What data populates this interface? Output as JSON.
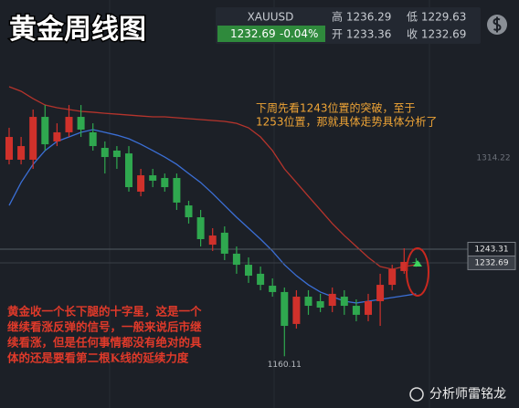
{
  "chart_data": {
    "type": "candlestick",
    "title": "黄金周线图",
    "quote": {
      "symbol": "XAUUSD",
      "last": "1232.69",
      "change": "-0.04%",
      "high": "高 1236.29",
      "low": "低 1229.63",
      "open": "开 1233.36",
      "close": "收 1232.69"
    },
    "annotations": [
      "下周先看1243位置的突破，至于",
      "1253位置，那就具体走势具体分析了"
    ],
    "notes": [
      "黄金收一个长下腿的十字星，这是一个",
      "继续看涨反弹的信号，一般来说后市继",
      "续看涨，但是任何事情都没有绝对的具",
      "体的还是要看第二根K线的延续力度"
    ],
    "watermark": "分析师雷铭龙",
    "up_color": "#d0312b",
    "down_color": "#2fa84f",
    "open": [
      1312.8,
      1312.8,
      1312.8,
      1346.1,
      1327.0,
      1334.1,
      1346.1,
      1334.1,
      1322.0,
      1319.9,
      1317.7,
      1288.0,
      1300.7,
      1298.6,
      1298.6,
      1277.3,
      1268.1,
      1246.8,
      1256.1,
      1239.8,
      1231.2,
      1224.2,
      1214.9,
      1210.0,
      1185.2,
      1206.4,
      1202.9,
      1199.3,
      1206.4,
      1199.3,
      1192.3,
      1202.9,
      1215.6,
      1226.3,
      1233.36
    ],
    "high": [
      1337.6,
      1330.5,
      1351.8,
      1355.3,
      1341.1,
      1355.3,
      1355.3,
      1341.1,
      1327.0,
      1323.4,
      1323.4,
      1305.7,
      1305.7,
      1302.1,
      1302.1,
      1280.9,
      1273.8,
      1259.6,
      1261.0,
      1245.4,
      1236.9,
      1229.8,
      1220.6,
      1213.5,
      1211.4,
      1211.4,
      1208.6,
      1213.5,
      1211.4,
      1204.3,
      1208.6,
      1224.2,
      1231.2,
      1244.0,
      1236.29
    ],
    "low": [
      1309.2,
      1309.2,
      1305.7,
      1319.9,
      1323.4,
      1330.5,
      1330.5,
      1319.9,
      1302.1,
      1305.7,
      1288.0,
      1284.4,
      1291.5,
      1288.0,
      1273.8,
      1263.2,
      1245.4,
      1241.9,
      1234.8,
      1224.2,
      1217.1,
      1211.4,
      1206.4,
      1160.11,
      1181.6,
      1192.3,
      1194.4,
      1194.4,
      1192.3,
      1187.3,
      1187.3,
      1183.7,
      1211.4,
      1224.2,
      1229.63
    ],
    "close": [
      1330.5,
      1323.4,
      1346.1,
      1324.8,
      1334.1,
      1346.1,
      1336.2,
      1323.4,
      1314.9,
      1314.9,
      1291.5,
      1300.7,
      1296.5,
      1291.5,
      1279.5,
      1268.1,
      1251.1,
      1253.9,
      1239.8,
      1231.2,
      1222.7,
      1215.6,
      1210.0,
      1183.7,
      1206.4,
      1199.3,
      1197.9,
      1208.6,
      1199.3,
      1192.3,
      1202.9,
      1215.6,
      1227.7,
      1233.4,
      1232.69
    ],
    "bands": [
      {
        "color": "#b5342c",
        "values": [
          1369.5,
          1366.0,
          1360.3,
          1355.3,
          1353.2,
          1351.8,
          1350.4,
          1349.7,
          1348.9,
          1348.2,
          1347.5,
          1346.8,
          1346.1,
          1346.1,
          1345.4,
          1344.7,
          1344.0,
          1343.3,
          1342.6,
          1341.1,
          1337.6,
          1330.5,
          1319.9,
          1305.7,
          1295.1,
          1284.4,
          1273.8,
          1263.2,
          1253.9,
          1245.4,
          1236.9,
          1229.8,
          1227.7,
          1229.8,
          1231.2
        ]
      },
      {
        "color": "#3b6fd6",
        "values": [
          1277.3,
          1295.1,
          1309.2,
          1319.9,
          1327.0,
          1330.5,
          1334.1,
          1336.2,
          1334.1,
          1331.9,
          1329.1,
          1324.8,
          1319.9,
          1314.9,
          1309.2,
          1302.1,
          1295.1,
          1286.5,
          1277.3,
          1268.1,
          1259.6,
          1251.1,
          1241.9,
          1231.2,
          1222.7,
          1215.6,
          1210.0,
          1206.4,
          1202.9,
          1201.5,
          1202.9,
          1204.3,
          1205.7,
          1207.1,
          1208.6
        ]
      }
    ],
    "price_labels": [
      1314.22,
      1243.31,
      1232.69
    ],
    "low_label": 1160.11,
    "ylim": [
      1119.9,
      1436.9
    ]
  }
}
